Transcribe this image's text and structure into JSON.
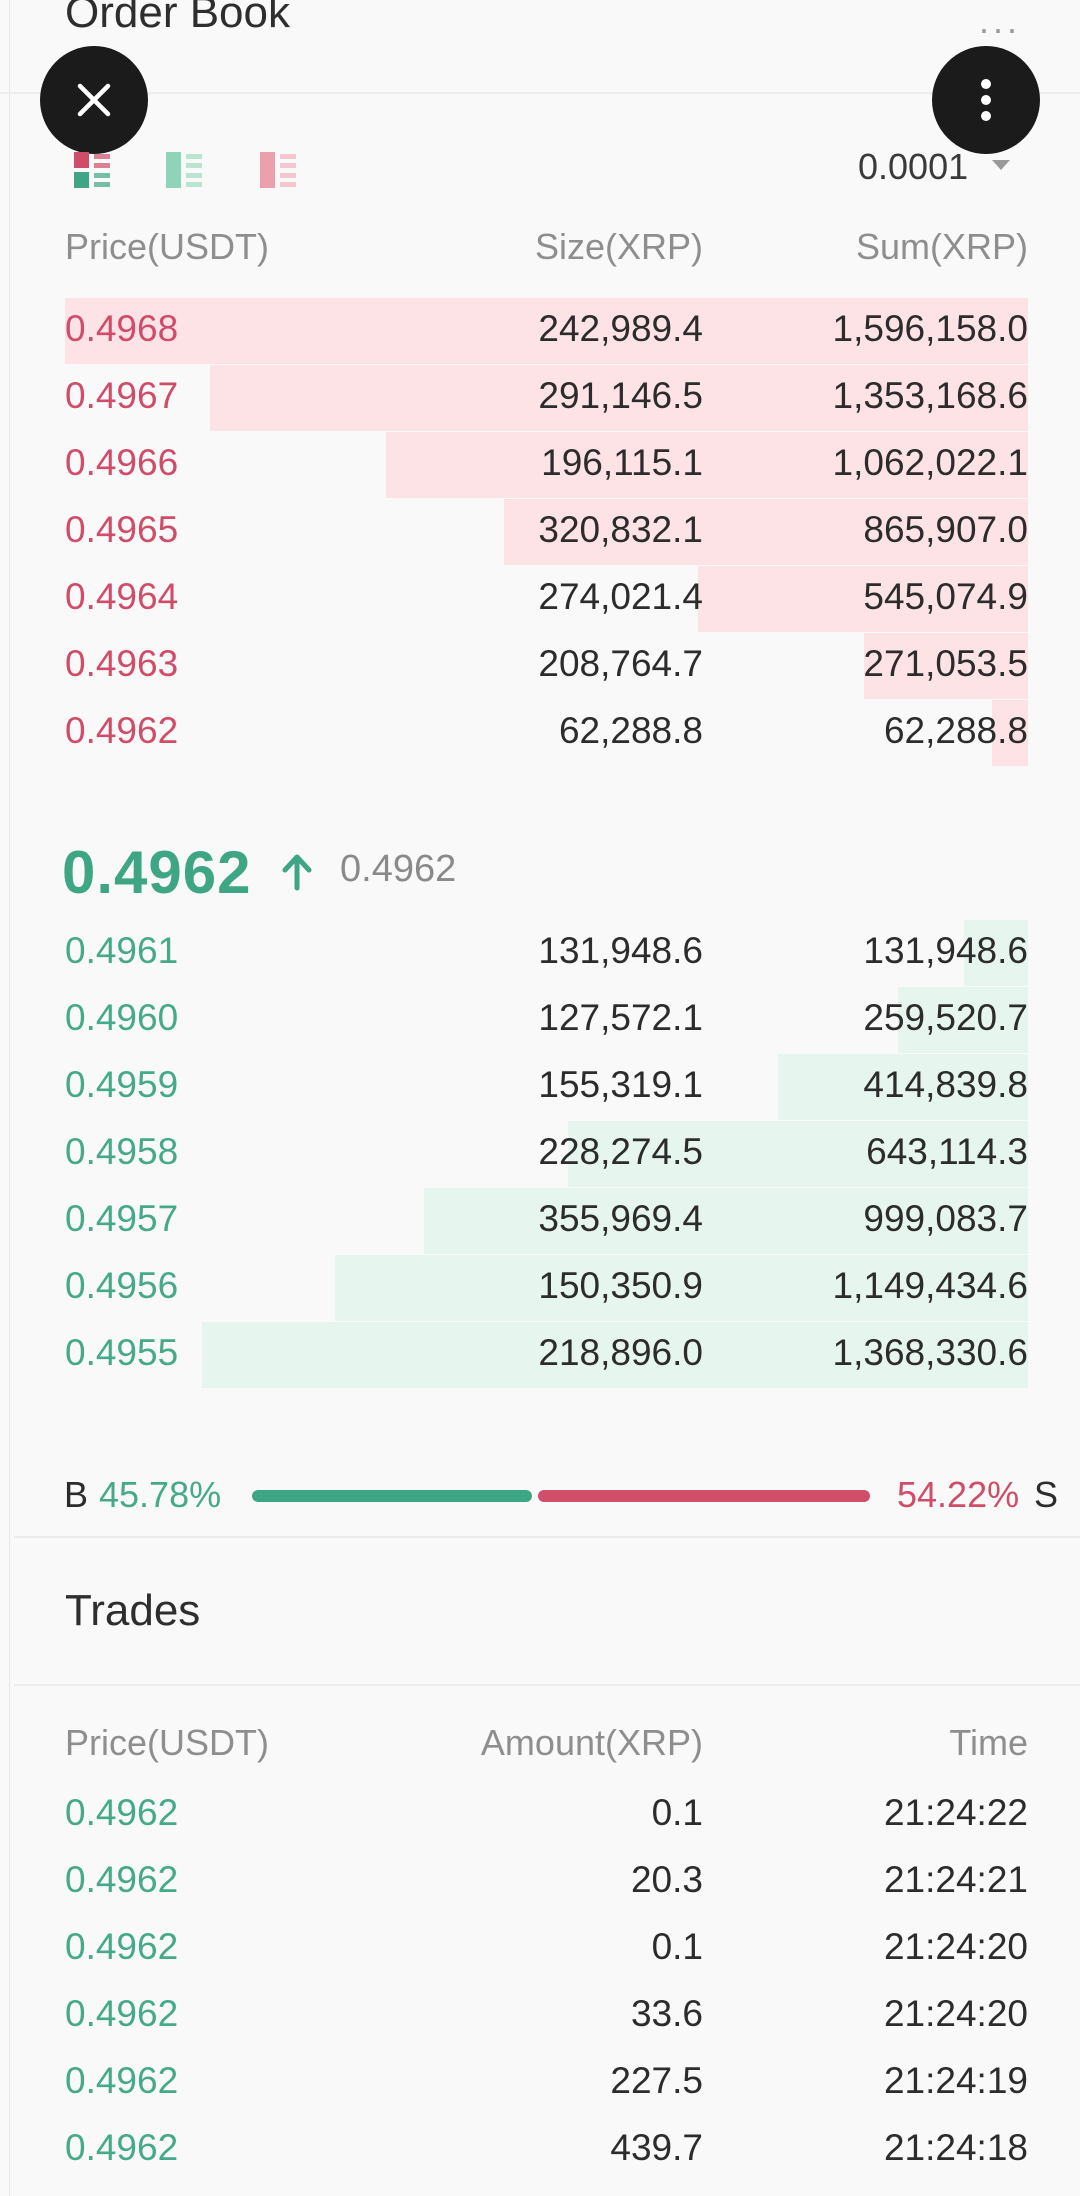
{
  "header": {
    "title": "Order Book",
    "more_glyph": "···"
  },
  "overlay": {
    "close_icon": "close-icon",
    "more_icon": "more-vertical-icon"
  },
  "toolbar": {
    "layout_icons": [
      "order-book-both-icon",
      "order-book-bids-icon",
      "order-book-asks-icon"
    ],
    "precision": "0.0001"
  },
  "orderbook": {
    "headers": {
      "price": "Price(USDT)",
      "size": "Size(XRP)",
      "sum": "Sum(XRP)"
    },
    "asks": [
      {
        "price": "0.4968",
        "size": "242,989.4",
        "sum": "1,596,158.0"
      },
      {
        "price": "0.4967",
        "size": "291,146.5",
        "sum": "1,353,168.6"
      },
      {
        "price": "0.4966",
        "size": "196,115.1",
        "sum": "1,062,022.1"
      },
      {
        "price": "0.4965",
        "size": "320,832.1",
        "sum": "865,907.0"
      },
      {
        "price": "0.4964",
        "size": "274,021.4",
        "sum": "545,074.9"
      },
      {
        "price": "0.4963",
        "size": "208,764.7",
        "sum": "271,053.5"
      },
      {
        "price": "0.4962",
        "size": "62,288.8",
        "sum": "62,288.8"
      }
    ],
    "last_price": "0.4962",
    "mark_price": "0.4962",
    "bids": [
      {
        "price": "0.4961",
        "size": "131,948.6",
        "sum": "131,948.6"
      },
      {
        "price": "0.4960",
        "size": "127,572.1",
        "sum": "259,520.7"
      },
      {
        "price": "0.4959",
        "size": "155,319.1",
        "sum": "414,839.8"
      },
      {
        "price": "0.4958",
        "size": "228,274.5",
        "sum": "643,114.3"
      },
      {
        "price": "0.4957",
        "size": "355,969.4",
        "sum": "999,083.7"
      },
      {
        "price": "0.4956",
        "size": "150,350.9",
        "sum": "1,149,434.6"
      },
      {
        "price": "0.4955",
        "size": "218,896.0",
        "sum": "1,368,330.6"
      }
    ],
    "ratio": {
      "buy_label": "B",
      "buy_pct": "45.78%",
      "sell_pct": "54.22%",
      "sell_label": "S"
    }
  },
  "trades": {
    "title": "Trades",
    "headers": {
      "price": "Price(USDT)",
      "amount": "Amount(XRP)",
      "time": "Time"
    },
    "rows": [
      {
        "price": "0.4962",
        "amount": "0.1",
        "time": "21:24:22"
      },
      {
        "price": "0.4962",
        "amount": "20.3",
        "time": "21:24:21"
      },
      {
        "price": "0.4962",
        "amount": "0.1",
        "time": "21:24:20"
      },
      {
        "price": "0.4962",
        "amount": "33.6",
        "time": "21:24:20"
      },
      {
        "price": "0.4962",
        "amount": "227.5",
        "time": "21:24:19"
      },
      {
        "price": "0.4962",
        "amount": "439.7",
        "time": "21:24:18"
      }
    ]
  },
  "colors": {
    "ask": "#d04d6a",
    "bid": "#45a98a",
    "ask_depth": "#fde3e6",
    "bid_depth": "#e6f5ee"
  }
}
